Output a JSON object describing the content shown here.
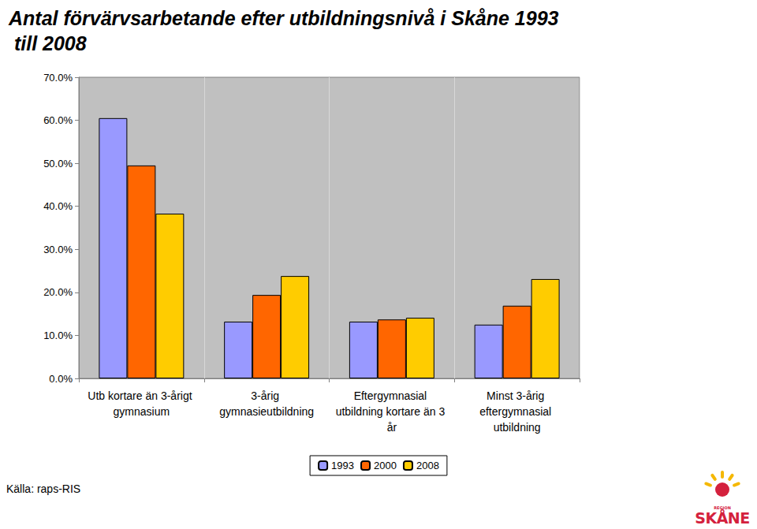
{
  "chart_data": {
    "type": "bar",
    "title": "Antal förvärvsarbetande efter utbildningsnivå i Skåne 1993 till 2008",
    "source": "Källa: raps-RIS",
    "logo": {
      "small": "REGION",
      "large": "SKÅNE"
    },
    "categories": [
      "Utb kortare än 3-årigt gymnasium",
      "3-årig gymnasieutbildning",
      "Eftergymnasial utbildning kortare än 3 år",
      "Minst 3-årig eftergymnasial utbildning"
    ],
    "series": [
      {
        "name": "1993",
        "color": "#9999ff",
        "values": [
          60.5,
          13.2,
          13.2,
          12.5
        ]
      },
      {
        "name": "2000",
        "color": "#ff6600",
        "values": [
          49.5,
          19.4,
          13.7,
          16.9
        ]
      },
      {
        "name": "2008",
        "color": "#ffcc00",
        "values": [
          38.3,
          23.8,
          14.1,
          23.1
        ]
      }
    ],
    "ylim": [
      0,
      70
    ],
    "yticks": [
      {
        "value": 0,
        "label": "0.0%"
      },
      {
        "value": 10,
        "label": "10.0%"
      },
      {
        "value": 20,
        "label": "20.0%"
      },
      {
        "value": 30,
        "label": "30.0%"
      },
      {
        "value": 40,
        "label": "40.0%"
      },
      {
        "value": 50,
        "label": "50.0%"
      },
      {
        "value": 60,
        "label": "60.0%"
      },
      {
        "value": 70,
        "label": "70.0%"
      }
    ],
    "grid": true,
    "legend": "bottom"
  }
}
